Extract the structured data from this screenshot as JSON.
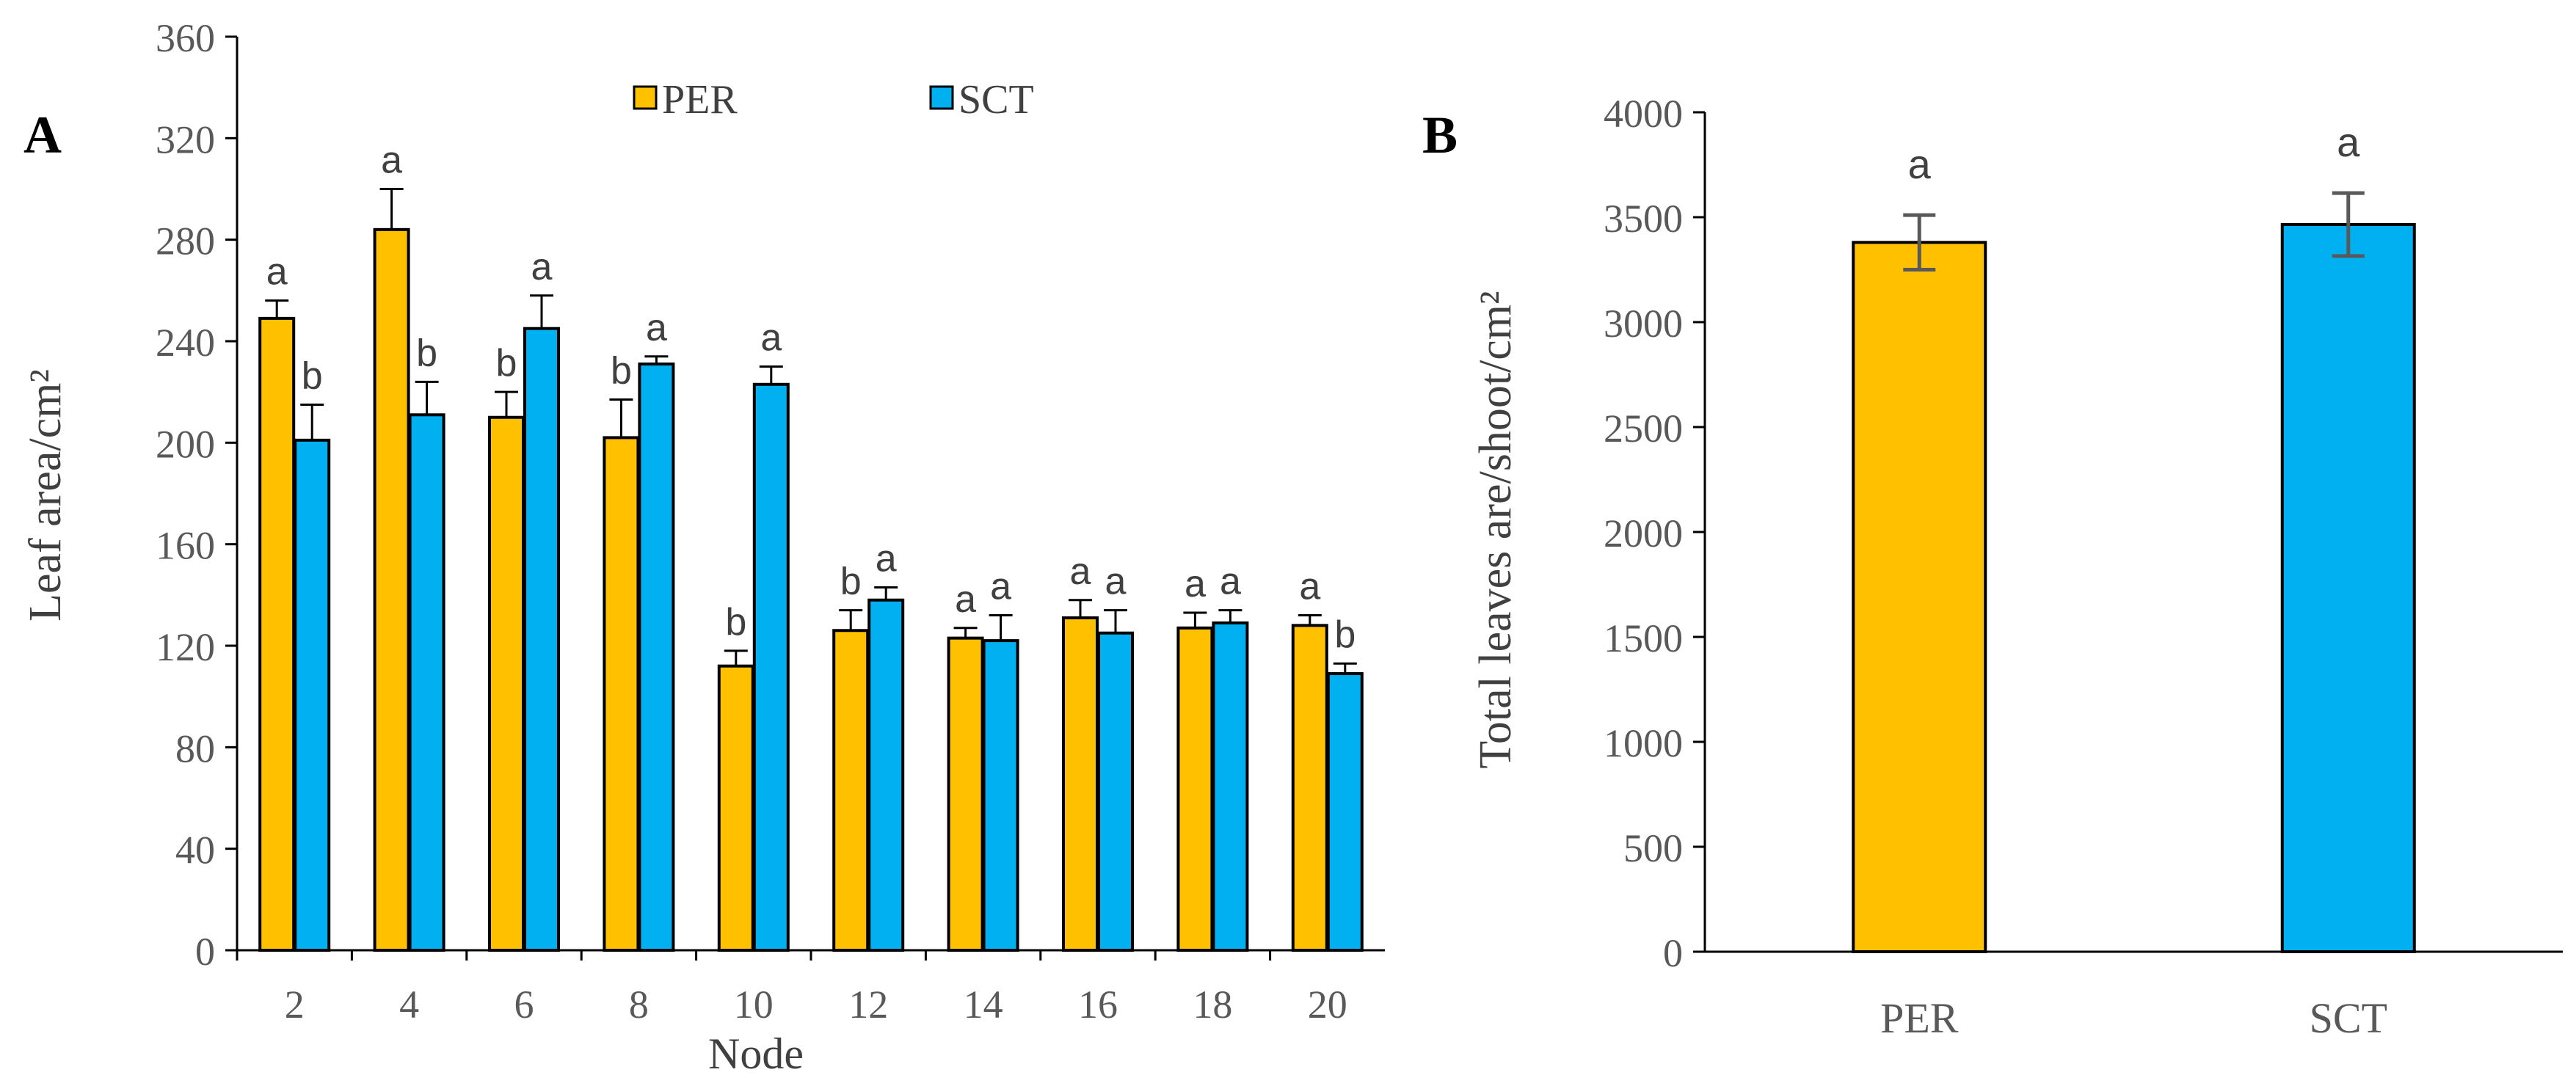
{
  "colors": {
    "PER": "#FFC000",
    "SCT": "#00B0F0"
  },
  "chart_data": [
    {
      "panel": "A",
      "type": "bar",
      "xlabel": "Node",
      "ylabel": "Leaf area/cm²",
      "ylim": [
        0,
        360
      ],
      "yticks": [
        0,
        40,
        80,
        120,
        160,
        200,
        240,
        280,
        320,
        360
      ],
      "categories": [
        "2",
        "4",
        "6",
        "8",
        "10",
        "12",
        "14",
        "16",
        "18",
        "20"
      ],
      "legend": {
        "placement": "top"
      },
      "series": [
        {
          "name": "PER",
          "values": [
            249,
            284,
            210,
            202,
            112,
            126,
            123,
            131,
            127,
            128
          ],
          "errors": [
            7,
            16,
            10,
            15,
            6,
            8,
            4,
            7,
            6,
            4
          ],
          "labels": [
            "a",
            "a",
            "b",
            "b",
            "b",
            "b",
            "a",
            "a",
            "a",
            "a"
          ]
        },
        {
          "name": "SCT",
          "values": [
            201,
            211,
            245,
            231,
            223,
            138,
            122,
            125,
            129,
            109
          ],
          "errors": [
            14,
            13,
            13,
            3,
            7,
            5,
            10,
            9,
            5,
            4
          ],
          "labels": [
            "b",
            "b",
            "a",
            "a",
            "a",
            "a",
            "a",
            "a",
            "a",
            "b"
          ]
        }
      ]
    },
    {
      "panel": "B",
      "type": "bar",
      "xlabel": "",
      "ylabel": "Total leaves are/shoot/cm²",
      "ylim": [
        0,
        4000
      ],
      "yticks": [
        0,
        500,
        1000,
        1500,
        2000,
        2500,
        3000,
        3500,
        4000
      ],
      "categories": [
        "PER",
        "SCT"
      ],
      "values": [
        3380,
        3465
      ],
      "errors": [
        130,
        150
      ],
      "labels": [
        "a",
        "a"
      ]
    }
  ]
}
